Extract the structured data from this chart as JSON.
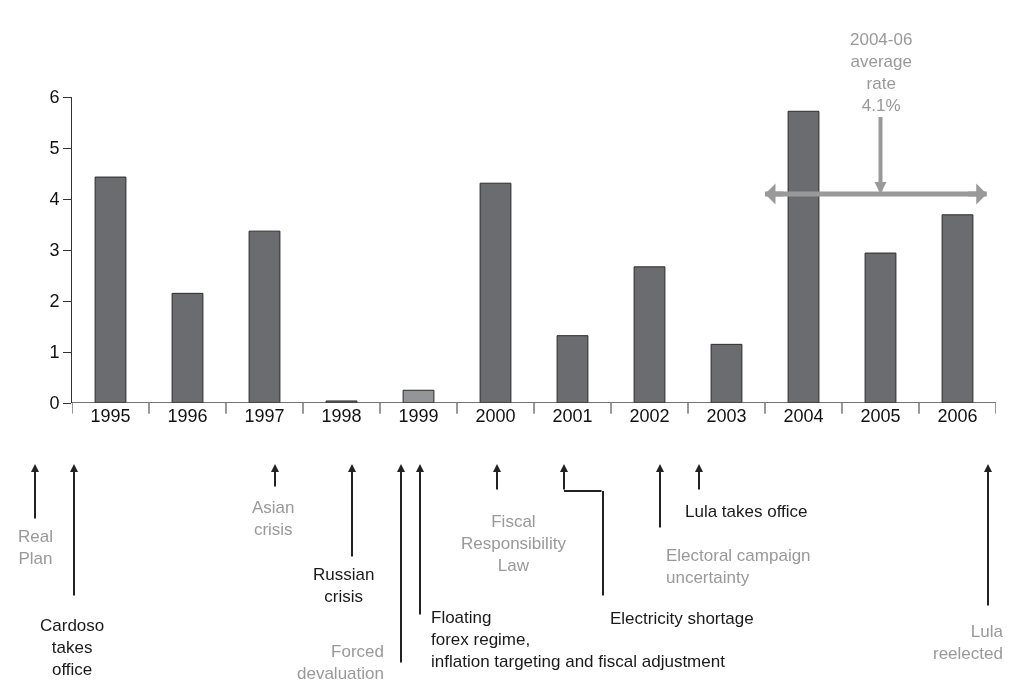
{
  "chart_data": {
    "type": "bar",
    "categories": [
      "1995",
      "1996",
      "1997",
      "1998",
      "1999",
      "2000",
      "2001",
      "2002",
      "2003",
      "2004",
      "2005",
      "2006"
    ],
    "values": [
      4.43,
      2.15,
      3.37,
      0.04,
      0.25,
      4.31,
      1.32,
      2.67,
      1.15,
      5.72,
      2.94,
      3.69
    ],
    "colors": [
      "#6b6c70",
      "#6b6c70",
      "#6b6c70",
      "#6b6c70",
      "#939598",
      "#6b6c70",
      "#6b6c70",
      "#6b6c70",
      "#6b6c70",
      "#6b6c70",
      "#6b6c70",
      "#6b6c70"
    ],
    "ylim": [
      0,
      6
    ],
    "yticks": [
      0,
      1,
      2,
      3,
      4,
      5,
      6
    ],
    "ref_lines": [
      {
        "axis": "y",
        "value": 4.1,
        "color": "#999999"
      }
    ],
    "annotations": [
      "Real\nPlan",
      "Cardoso\ntakes\noffice",
      "Asian\ncrisis",
      "Russian\ncrisis",
      "Forced\ndevaluation",
      "Floating\nforex regime,\ninflation targeting and fiscal adjustment",
      "Fiscal\nResponsibility\nLaw",
      "Electricity shortage",
      "Electoral campaign\nuncertainty",
      "Lula takes office",
      "Lula\nreelected",
      {
        "text": "2004-06\naverage\nrate\n4.1%",
        "x": "2005",
        "y": 4.1
      }
    ]
  }
}
